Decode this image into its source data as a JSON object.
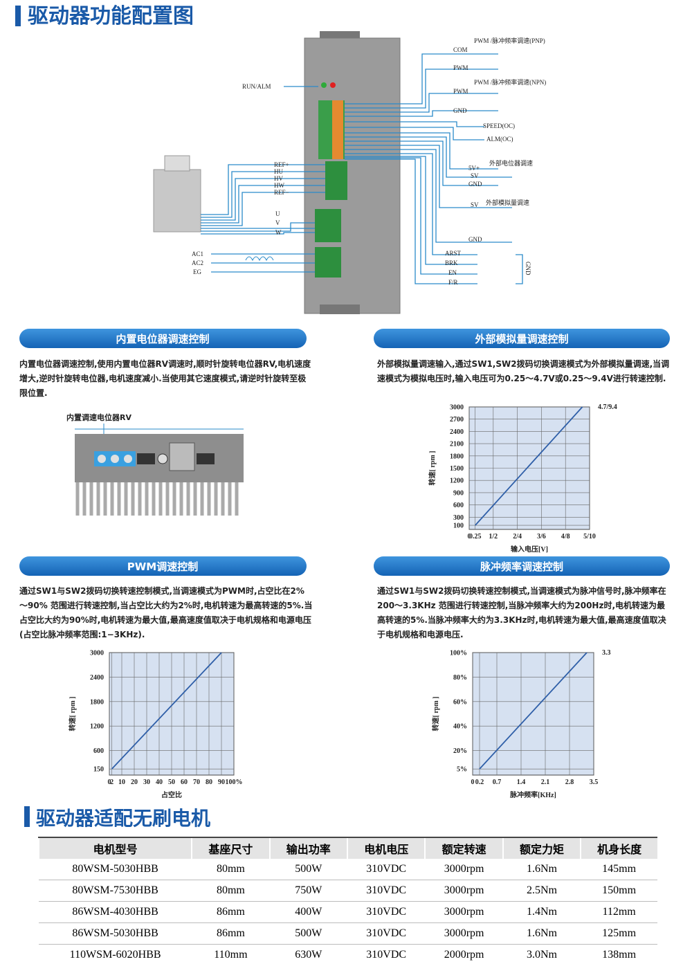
{
  "header": {
    "title": "驱动器功能配置图"
  },
  "diagram": {
    "labels": [
      "RUN/ALM",
      "REF+",
      "HU",
      "HV",
      "HW",
      "REF−",
      "U",
      "V",
      "W",
      "AC1",
      "AC2",
      "EG",
      "PWM /脉冲频率调速(PNP)",
      "COM",
      "PWM",
      "PWM /脉冲频率调速(NPN)",
      "PWM",
      "GND",
      "SPEED(OC)",
      "ALM(OC)",
      "外部电位器调速",
      "5V+",
      "SV",
      "GND",
      "SV",
      "外部模拟量调速",
      "GND",
      "ARST",
      "BRK",
      "EN",
      "F/R",
      "GND"
    ]
  },
  "sections": [
    {
      "title": "内置电位器调速控制",
      "text": "内置电位器调速控制,使用内置电位器RV调速时,顺时针旋转电位器RV,电机速度增大,逆时针旋转电位器,电机速度减小.当使用其它速度模式,请逆时针旋转至极限位置.",
      "image_label": "内置调速电位器RV"
    },
    {
      "title": "外部模拟量调速控制",
      "text": "外部模拟量调速输入,通过SW1,SW2拨码切换调速模式为外部模拟量调速,当调速模式为模拟电压时,输入电压可为0.25～4.7V或0.25～9.4V进行转速控制.",
      "chart": {
        "type": "line",
        "x_label": "输入电压[V]",
        "y_label": "转速[ rpm ]",
        "annotation": "4.7/9.4",
        "xlim": [
          0,
          5
        ],
        "ylim": [
          0,
          3000
        ],
        "xticks": [
          0,
          0.25,
          {
            "value": 1,
            "label": "1/2"
          },
          {
            "value": 2,
            "label": "2/4"
          },
          {
            "value": 3,
            "label": "3/6"
          },
          {
            "value": 4,
            "label": "4/8"
          },
          {
            "value": 5,
            "label": "5/10"
          }
        ],
        "yticks": [
          100,
          300,
          600,
          900,
          1200,
          1500,
          1800,
          2100,
          2400,
          2700,
          3000
        ],
        "grid": true,
        "series": [
          {
            "color": "#2f5fa8",
            "x": [
              0.25,
              4.7
            ],
            "values": [
              100,
              3000
            ]
          }
        ]
      }
    },
    {
      "title": "PWM调速控制",
      "text": "通过SW1与SW2拨码切换转速控制模式,当调速模式为PWM时,占空比在2% ～90% 范围进行转速控制,当占空比大约为2%时,电机转速为最高转速的5%.当占空比大约为90%时,电机转速为最大值,最高速度值取决于电机规格和电源电压(占空比脉冲频率范围:1−3KHz).",
      "chart": {
        "type": "line",
        "x_label": "占空比",
        "y_label": "转速[ rpm ]",
        "xlim": [
          0,
          100
        ],
        "ylim": [
          0,
          3000
        ],
        "xticks": [
          0,
          2,
          10,
          20,
          30,
          40,
          50,
          60,
          70,
          80,
          90,
          {
            "value": 100,
            "label": "100%"
          }
        ],
        "yticks": [
          150,
          600,
          1200,
          1800,
          2400,
          3000
        ],
        "grid": true,
        "series": [
          {
            "color": "#2f5fa8",
            "x": [
              2,
              90
            ],
            "values": [
              150,
              3000
            ]
          }
        ]
      }
    },
    {
      "title": "脉冲频率调速控制",
      "text": "通过SW1与SW2拨码切换转速控制模式,当调速模式为脉冲信号时,脉冲频率在200～3.3KHz 范围进行转速控制,当脉冲频率大约为200Hz时,电机转速为最高转速的5%.当脉冲频率大约为3.3KHz时,电机转速为最大值,最高速度值取决于电机规格和电源电压.",
      "chart": {
        "type": "line",
        "x_label": "脉冲频率[KHz]",
        "y_label": "转速[ rpm ]",
        "annotation": "3.3",
        "xlim": [
          0,
          3.5
        ],
        "ylim": [
          0,
          100
        ],
        "xticks": [
          0,
          0.2,
          0.7,
          1.4,
          2.1,
          2.8,
          3.5
        ],
        "yticks": [
          {
            "value": 5,
            "label": "5%"
          },
          {
            "value": 20,
            "label": "20%"
          },
          {
            "value": 40,
            "label": "40%"
          },
          {
            "value": 60,
            "label": "60%"
          },
          {
            "value": 80,
            "label": "80%"
          },
          {
            "value": 100,
            "label": "100%"
          }
        ],
        "grid": true,
        "series": [
          {
            "color": "#2f5fa8",
            "x": [
              0.2,
              3.3
            ],
            "values": [
              5,
              100
            ]
          }
        ]
      }
    }
  ],
  "table": {
    "title": "驱动器适配无刷电机",
    "columns": [
      "电机型号",
      "基座尺寸",
      "输出功率",
      "电机电压",
      "额定转速",
      "额定力矩",
      "机身长度"
    ],
    "rows": [
      [
        "80WSM-5030HBB",
        "80mm",
        "500W",
        "310VDC",
        "3000rpm",
        "1.6Nm",
        "145mm"
      ],
      [
        "80WSM-7530HBB",
        "80mm",
        "750W",
        "310VDC",
        "3000rpm",
        "2.5Nm",
        "150mm"
      ],
      [
        "86WSM-4030HBB",
        "86mm",
        "400W",
        "310VDC",
        "3000rpm",
        "1.4Nm",
        "112mm"
      ],
      [
        "86WSM-5030HBB",
        "86mm",
        "500W",
        "310VDC",
        "3000rpm",
        "1.6Nm",
        "125mm"
      ],
      [
        "110WSM-6020HBB",
        "110mm",
        "630W",
        "310VDC",
        "2000rpm",
        "3.0Nm",
        "138mm"
      ]
    ]
  }
}
